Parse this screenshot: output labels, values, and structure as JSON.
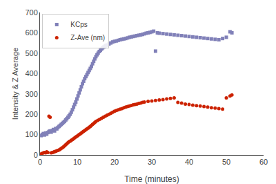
{
  "chart_data": {
    "type": "scatter",
    "xlabel": "Time (minutes)",
    "ylabel": "Intensity & Z Average",
    "xlim": [
      0,
      60
    ],
    "ylim": [
      0,
      700
    ],
    "xticks": [
      0,
      10,
      20,
      30,
      40,
      50,
      60
    ],
    "yticks": [
      0,
      100,
      200,
      300,
      400,
      500,
      600,
      700
    ],
    "grid": false,
    "legend": "upper left",
    "series": [
      {
        "name": "KCps",
        "color": "#8080b8",
        "marker": "square",
        "x": [
          0.3,
          0.6,
          0.9,
          1.2,
          1.5,
          1.8,
          2.1,
          2.4,
          2.7,
          3.0,
          3.3,
          3.6,
          3.9,
          4.2,
          4.5,
          4.8,
          5.1,
          5.4,
          5.7,
          6.0,
          6.3,
          6.6,
          6.9,
          7.2,
          7.5,
          7.8,
          8.1,
          8.4,
          8.7,
          9.0,
          9.3,
          9.6,
          9.9,
          10.2,
          10.5,
          10.8,
          11.1,
          11.4,
          11.7,
          12.0,
          12.3,
          12.6,
          12.9,
          13.2,
          13.5,
          13.8,
          14.1,
          14.4,
          14.7,
          15.0,
          15.3,
          15.6,
          15.9,
          16.2,
          16.5,
          16.8,
          17.1,
          17.4,
          17.7,
          18.0,
          18.5,
          19.0,
          19.5,
          20.0,
          20.5,
          21.0,
          21.5,
          22.0,
          22.5,
          23.0,
          23.5,
          24.0,
          24.5,
          25.0,
          25.5,
          26.0,
          26.5,
          27.0,
          27.5,
          28.0,
          28.5,
          29.0,
          29.5,
          30.0,
          30.5,
          31.0,
          31.5,
          32.0,
          33.0,
          34.0,
          35.0,
          36.0,
          37.0,
          38.0,
          39.0,
          40.0,
          41.0,
          42.0,
          43.0,
          44.0,
          45.0,
          46.0,
          47.0,
          48.0,
          49.0,
          50.0,
          51.0,
          51.5
        ],
        "values": [
          95,
          100,
          105,
          98,
          108,
          102,
          110,
          115,
          118,
          112,
          120,
          125,
          118,
          130,
          128,
          135,
          140,
          145,
          150,
          155,
          160,
          165,
          172,
          178,
          185,
          192,
          200,
          210,
          222,
          235,
          248,
          260,
          275,
          290,
          305,
          320,
          335,
          350,
          362,
          375,
          385,
          395,
          405,
          415,
          425,
          435,
          448,
          460,
          472,
          483,
          492,
          500,
          508,
          514,
          520,
          526,
          530,
          534,
          537,
          540,
          545,
          550,
          555,
          558,
          560,
          563,
          566,
          568,
          570,
          572,
          575,
          578,
          580,
          582,
          584,
          586,
          588,
          590,
          592,
          595,
          598,
          600,
          602,
          605,
          608,
          510,
          600,
          598,
          596,
          594,
          592,
          590,
          588,
          586,
          584,
          582,
          580,
          578,
          576,
          574,
          572,
          570,
          568,
          566,
          572,
          578,
          605,
          600
        ]
      },
      {
        "name": "Z-Ave (nm)",
        "color": "#cc2200",
        "marker": "circle",
        "x": [
          0.3,
          0.6,
          0.9,
          1.2,
          1.5,
          1.8,
          2.1,
          2.4,
          2.7,
          3.0,
          3.3,
          3.6,
          3.9,
          4.2,
          4.5,
          4.8,
          5.1,
          5.4,
          5.7,
          6.0,
          6.3,
          6.6,
          6.9,
          7.2,
          7.5,
          7.8,
          8.1,
          8.4,
          8.7,
          9.0,
          9.3,
          9.6,
          9.9,
          10.2,
          10.5,
          10.8,
          11.1,
          11.4,
          11.7,
          12.0,
          12.3,
          12.6,
          12.9,
          13.2,
          13.5,
          13.8,
          14.1,
          14.4,
          14.7,
          15.0,
          15.5,
          16.0,
          16.5,
          17.0,
          17.5,
          18.0,
          18.5,
          19.0,
          19.5,
          20.0,
          20.5,
          21.0,
          21.5,
          22.0,
          22.5,
          23.0,
          23.5,
          24.0,
          24.5,
          25.0,
          25.5,
          26.0,
          26.5,
          27.0,
          27.5,
          28.0,
          29.0,
          30.0,
          31.0,
          32.0,
          33.0,
          34.0,
          35.0,
          36.0,
          37.0,
          38.0,
          39.0,
          40.0,
          41.0,
          42.0,
          43.0,
          44.0,
          45.0,
          46.0,
          47.0,
          48.0,
          49.0,
          50.0,
          51.0,
          51.5
        ],
        "values": [
          5,
          8,
          10,
          12,
          10,
          15,
          12,
          190,
          185,
          10,
          12,
          14,
          16,
          18,
          20,
          22,
          25,
          28,
          32,
          36,
          40,
          45,
          50,
          55,
          60,
          65,
          68,
          72,
          76,
          80,
          84,
          88,
          92,
          96,
          100,
          104,
          108,
          112,
          116,
          120,
          124,
          128,
          132,
          136,
          140,
          145,
          150,
          155,
          160,
          165,
          170,
          175,
          180,
          185,
          190,
          195,
          200,
          205,
          210,
          215,
          218,
          222,
          225,
          228,
          232,
          235,
          238,
          240,
          243,
          246,
          248,
          250,
          253,
          255,
          258,
          260,
          263,
          265,
          268,
          270,
          272,
          275,
          278,
          280,
          258,
          255,
          250,
          248,
          245,
          242,
          240,
          238,
          235,
          232,
          230,
          228,
          225,
          280,
          290,
          295
        ]
      }
    ]
  }
}
